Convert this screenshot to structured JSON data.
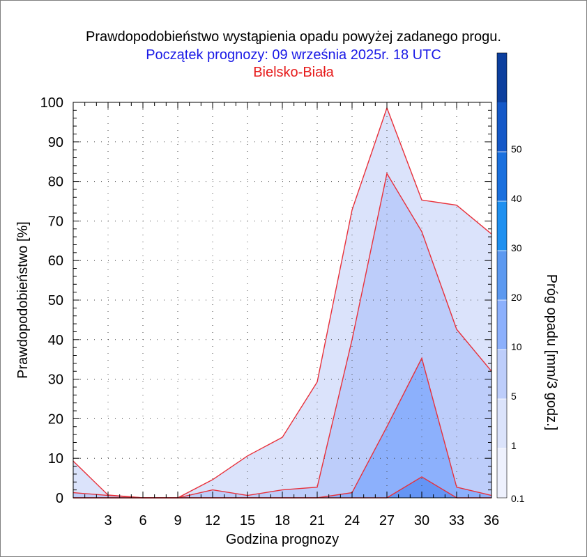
{
  "chart_data": {
    "type": "area",
    "title": "Prawdopodobieństwo wystąpienia opadu powyżej zadanego progu.",
    "subtitle": "Początek prognozy: 09 września 2025r. 18 UTC",
    "location": "Bielsko-Biała",
    "xlabel": "Godzina prognozy",
    "ylabel": "Prawdopodobieństwo [%]",
    "colorbar_label": "Próg opadu [mm/3 godz.]",
    "x": [
      0,
      3,
      6,
      9,
      12,
      15,
      18,
      21,
      24,
      27,
      30,
      33,
      36
    ],
    "x_tick_labels": [
      "3",
      "6",
      "9",
      "12",
      "15",
      "18",
      "21",
      "24",
      "27",
      "30",
      "33",
      "36"
    ],
    "x_ticks": [
      3,
      6,
      9,
      12,
      15,
      18,
      21,
      24,
      27,
      30,
      33,
      36
    ],
    "y_tick_labels": [
      "0",
      "10",
      "20",
      "30",
      "40",
      "50",
      "60",
      "70",
      "80",
      "90",
      "100"
    ],
    "y_ticks": [
      0,
      10,
      20,
      30,
      40,
      50,
      60,
      70,
      80,
      90,
      100
    ],
    "xlim": [
      0,
      36
    ],
    "ylim": [
      0,
      100
    ],
    "grid": true,
    "series": [
      {
        "name": "0.1",
        "color": "#dbe3fb",
        "values": [
          9.3,
          0.7,
          0,
          0,
          4.6,
          10.6,
          15.3,
          29.3,
          72.8,
          98.6,
          75.3,
          74.0,
          66.7
        ]
      },
      {
        "name": "1",
        "color": "#bdcdfa",
        "values": [
          1.3,
          0.6,
          0,
          0,
          2.0,
          0.6,
          2.0,
          2.7,
          40.0,
          82.0,
          67.3,
          42.6,
          32.0
        ]
      },
      {
        "name": "5",
        "color": "#8cb0fc",
        "values": [
          0,
          0,
          0,
          0,
          0,
          0,
          0,
          0,
          1.3,
          18.0,
          35.3,
          2.7,
          0.6
        ]
      },
      {
        "name": "10",
        "color": "#6495f5",
        "values": [
          0,
          0,
          0,
          0,
          0,
          0,
          0,
          0,
          0,
          0,
          5.3,
          0,
          0
        ]
      }
    ],
    "line_color": "#e8303a",
    "colorbar": {
      "labels": [
        "0.1",
        "1",
        "5",
        "10",
        "20",
        "30",
        "40",
        "50"
      ],
      "colors": [
        "#eef1fd",
        "#dbe3fb",
        "#bdcdfa",
        "#8cb0fc",
        "#5c99f0",
        "#1e90f0",
        "#1a70de",
        "#1458c8",
        "#0c3f9e"
      ]
    }
  }
}
